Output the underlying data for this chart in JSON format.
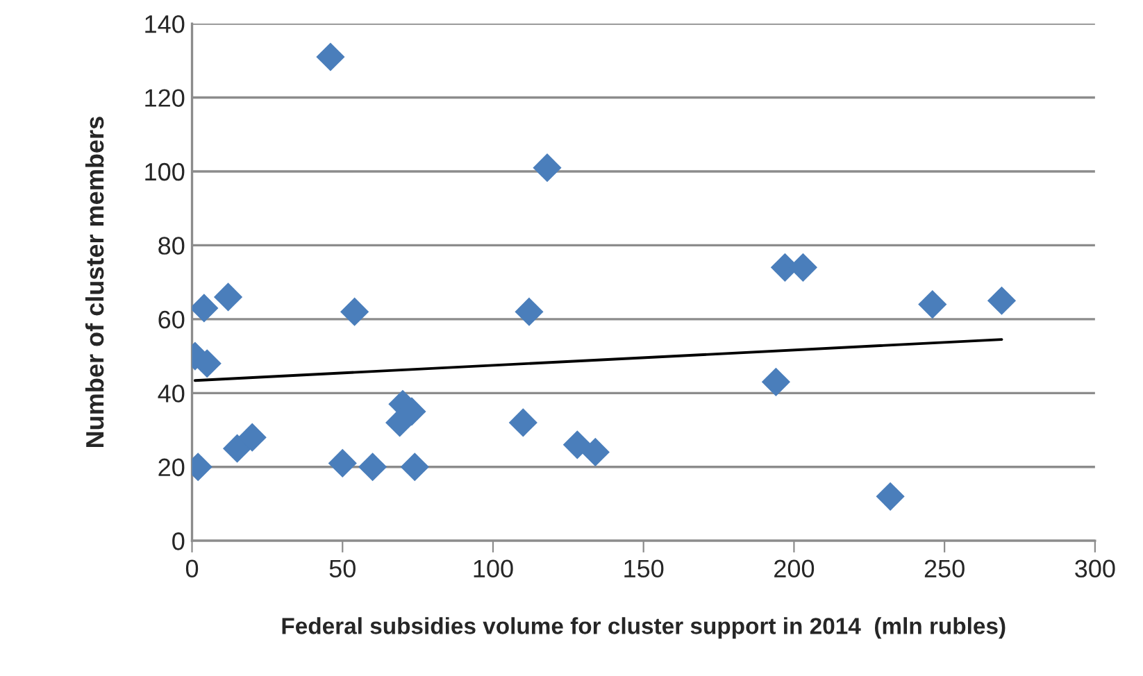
{
  "chart_data": {
    "type": "scatter",
    "xlabel": "Federal subsidies volume for cluster support in 2014  (mln rubles)",
    "ylabel": "Number of cluster members",
    "series": [
      {
        "color": "#4a7ebb",
        "marker": "diamond",
        "x": [
          46,
          118,
          4,
          12,
          54,
          112,
          1,
          5,
          70,
          73,
          69,
          110,
          15,
          20,
          128,
          134,
          2,
          50,
          60,
          74,
          197,
          203,
          246,
          269,
          194,
          232
        ],
        "values": [
          131,
          101,
          63,
          66,
          62,
          62,
          50,
          48,
          37,
          35,
          32,
          32,
          25,
          28,
          26,
          24,
          20,
          21,
          20,
          20,
          74,
          74,
          64,
          65,
          43,
          12
        ]
      },
      {
        "type": "line",
        "color": "#000000",
        "marker": "none",
        "line_style": "solid",
        "x": [
          1,
          269
        ],
        "values": [
          43.4,
          54.5
        ]
      }
    ],
    "xlim": [
      0,
      300
    ],
    "xticks": [
      0,
      50,
      100,
      150,
      200,
      250,
      300
    ],
    "ylim": [
      0,
      140
    ],
    "yticks": [
      0,
      20,
      40,
      60,
      80,
      100,
      120,
      140
    ],
    "grid": "y"
  }
}
